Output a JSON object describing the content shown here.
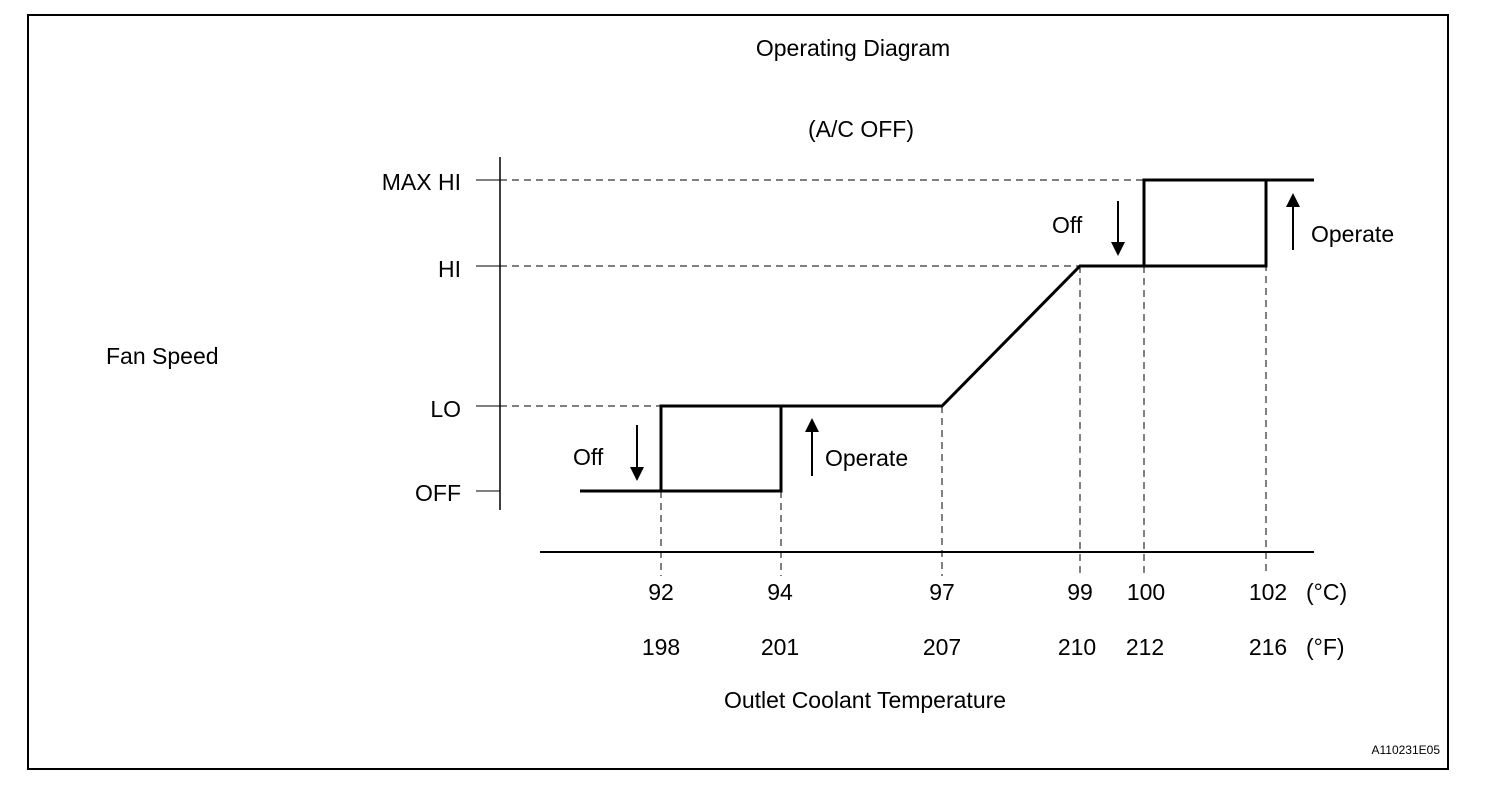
{
  "title": "Operating Diagram",
  "subtitle": "(A/C OFF)",
  "y_axis_label": "Fan Speed",
  "x_axis_label": "Outlet Coolant Temperature",
  "figure_code": "A110231E05",
  "levels": [
    {
      "key": "off",
      "label": "OFF"
    },
    {
      "key": "lo",
      "label": "LO"
    },
    {
      "key": "hi",
      "label": "HI"
    },
    {
      "key": "maxhi",
      "label": "MAX HI"
    }
  ],
  "ticks_celsius": [
    "92",
    "94",
    "97",
    "99",
    "100",
    "102"
  ],
  "ticks_fahrenheit": [
    "198",
    "201",
    "207",
    "210",
    "212",
    "216"
  ],
  "unit_celsius": "(°C)",
  "unit_fahrenheit": "(°F)",
  "annotations": {
    "low_off": "Off",
    "low_operate": "Operate",
    "high_off": "Off",
    "high_operate": "Operate"
  }
}
